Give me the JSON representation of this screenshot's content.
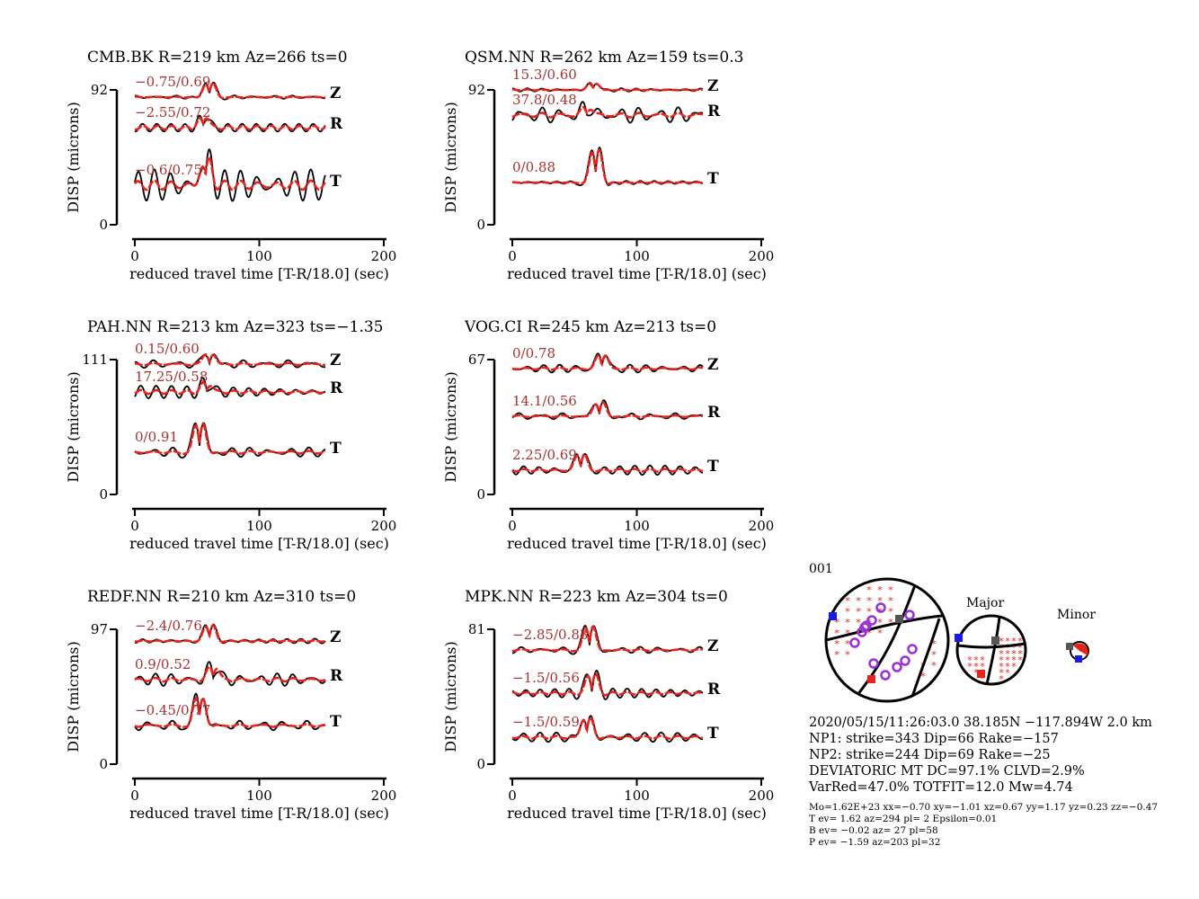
{
  "chart_data": [
    {
      "type": "line",
      "title": "CMB.BK R=219 km Az=266 ts=0",
      "ylabel": "DISP (microns)",
      "xlabel": "reduced travel time [T-R/18.0] (sec)",
      "ymax_label": "92",
      "ymin_label": "0",
      "xlim": [
        0,
        200
      ],
      "x_ticks": [
        "0",
        "100",
        "200"
      ],
      "traces": [
        {
          "component": "Z",
          "fit": "−0.75/0.69"
        },
        {
          "component": "R",
          "fit": "−2.55/0.72"
        },
        {
          "component": "T",
          "fit": "−0.6/0.75"
        }
      ]
    },
    {
      "type": "line",
      "title": "QSM.NN R=262 km Az=159 ts=0.3",
      "ylabel": "DISP (microns)",
      "xlabel": "reduced travel time [T-R/18.0] (sec)",
      "ymax_label": "92",
      "ymin_label": "0",
      "xlim": [
        0,
        200
      ],
      "x_ticks": [
        "0",
        "100",
        "200"
      ],
      "traces": [
        {
          "component": "Z",
          "fit": "15.3/0.60"
        },
        {
          "component": "R",
          "fit": "37.8/0.48"
        },
        {
          "component": "T",
          "fit": "0/0.88"
        }
      ]
    },
    {
      "type": "line",
      "title": "PAH.NN R=213 km Az=323 ts=−1.35",
      "ylabel": "DISP (microns)",
      "xlabel": "reduced travel time [T-R/18.0] (sec)",
      "ymax_label": "111",
      "ymin_label": "0",
      "xlim": [
        0,
        200
      ],
      "x_ticks": [
        "0",
        "100",
        "200"
      ],
      "traces": [
        {
          "component": "Z",
          "fit": "0.15/0.60"
        },
        {
          "component": "R",
          "fit": "17.25/0.58"
        },
        {
          "component": "T",
          "fit": "0/0.91"
        }
      ]
    },
    {
      "type": "line",
      "title": "VOG.CI R=245 km Az=213 ts=0",
      "ylabel": "DISP (microns)",
      "xlabel": "reduced travel time [T-R/18.0] (sec)",
      "ymax_label": "67",
      "ymin_label": "0",
      "xlim": [
        0,
        200
      ],
      "x_ticks": [
        "0",
        "100",
        "200"
      ],
      "traces": [
        {
          "component": "Z",
          "fit": "0/0.78"
        },
        {
          "component": "R",
          "fit": "14.1/0.56"
        },
        {
          "component": "T",
          "fit": "2.25/0.69"
        }
      ]
    },
    {
      "type": "line",
      "title": "REDF.NN R=210 km Az=310 ts=0",
      "ylabel": "DISP (microns)",
      "xlabel": "reduced travel time [T-R/18.0] (sec)",
      "ymax_label": "97",
      "ymin_label": "0",
      "xlim": [
        0,
        200
      ],
      "x_ticks": [
        "0",
        "100",
        "200"
      ],
      "traces": [
        {
          "component": "Z",
          "fit": "−2.4/0.76"
        },
        {
          "component": "R",
          "fit": "0.9/0.52"
        },
        {
          "component": "T",
          "fit": "−0.45/0.77"
        }
      ]
    },
    {
      "type": "line",
      "title": "MPK.NN R=223 km Az=304 ts=0",
      "ylabel": "DISP (microns)",
      "xlabel": "reduced travel time [T-R/18.0] (sec)",
      "ymax_label": "81",
      "ymin_label": "0",
      "xlim": [
        0,
        200
      ],
      "x_ticks": [
        "0",
        "100",
        "200"
      ],
      "traces": [
        {
          "component": "Z",
          "fit": "−2.85/0.83"
        },
        {
          "component": "R",
          "fit": "−1.5/0.56"
        },
        {
          "component": "T",
          "fit": "−1.5/0.59"
        }
      ]
    }
  ],
  "colors": {
    "observed": "#000000",
    "synthetic": "#e8231e",
    "fit_label": "#a83232",
    "compression": "#e8231e",
    "t_axis": "#e8231e",
    "p_axis": "#1a1ae6",
    "b_axis": "#555555",
    "station": "#9b30d9"
  },
  "mechanism": {
    "id": "001",
    "major_label": "Major",
    "minor_label": "Minor",
    "lines": [
      "2020/05/15/11:26:03.0 38.185N −117.894W 2.0 km",
      "NP1: strike=343 Dip=66 Rake=−157",
      "NP2: strike=244 Dip=69 Rake=−25",
      "DEVIATORIC MT DC=97.1% CLVD=2.9%",
      "VarRed=47.0% TOTFIT=12.0 Mw=4.74"
    ],
    "small_lines": [
      "Mo=1.62E+23 xx=−0.70 xy=−1.01 xz=0.67 yy=1.17 yz=0.23 zz=−0.47",
      "T ev=  1.62 az=294 pl= 2 Epsilon=0.01",
      "B ev= −0.02 az= 27 pl=58",
      "P ev= −1.59 az=203 pl=32"
    ]
  }
}
